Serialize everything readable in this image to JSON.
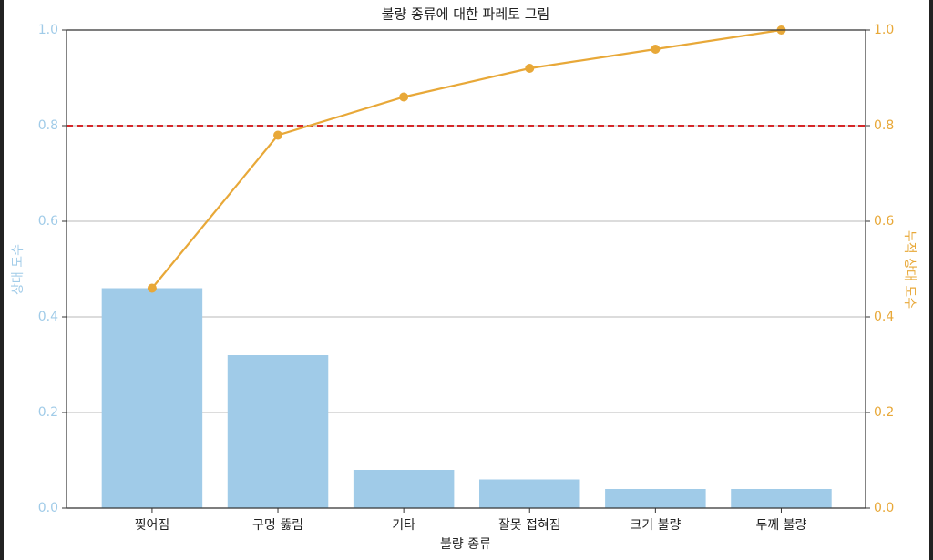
{
  "chart_data": {
    "type": "pareto",
    "title": "불량 종류에 대한 파레토 그림",
    "x_label": "불량 종류",
    "y_label": "상대 도수",
    "y2_label": "누적 상대 도수",
    "categories": [
      "찢어짐",
      "구멍 뚫림",
      "기타",
      "잘못 접혀짐",
      "크기 불량",
      "두께 불량"
    ],
    "series": [
      {
        "name": "상대 도수",
        "color": "#a0cbe8",
        "values": [
          0.46,
          0.32,
          0.08,
          0.06,
          0.04,
          0.04
        ]
      },
      {
        "name": "누적 상대 도수",
        "color": "#e8a838",
        "axis": "y2",
        "values": [
          0.46,
          0.78,
          0.86,
          0.92,
          0.96,
          1.0
        ]
      }
    ],
    "reference_line": {
      "value": 0.8,
      "color": "#d62728",
      "axis": "y2"
    },
    "ylim": [
      0,
      1
    ],
    "yticks": [
      {
        "value": 0,
        "label": "0.0"
      },
      0.2,
      0.4,
      0.6,
      0.8,
      {
        "value": 1,
        "label": "1.0"
      }
    ],
    "y2lim": [
      0,
      1
    ],
    "y2ticks": [
      {
        "value": 0,
        "label": "0.0"
      },
      0.2,
      0.4,
      0.6,
      0.8,
      {
        "value": 1,
        "label": "1.0"
      }
    ],
    "grid": true
  }
}
